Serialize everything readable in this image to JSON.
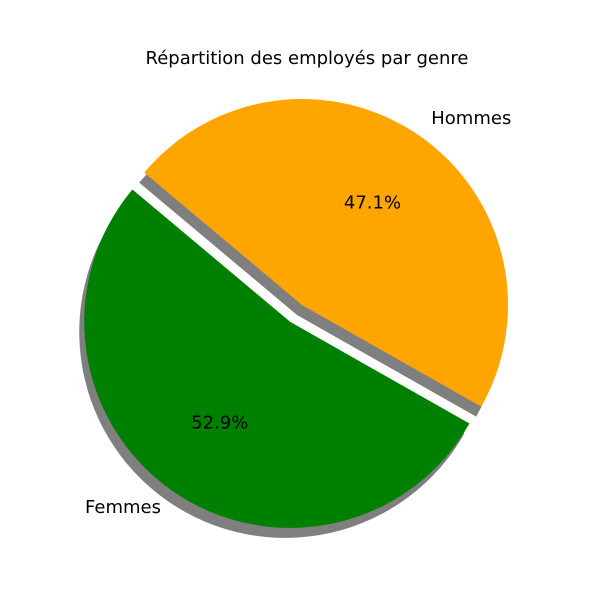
{
  "chart_data": {
    "type": "pie",
    "title": "Répartition des employés par genre",
    "slices": [
      {
        "label": "Femmes",
        "percent_label": "52.9%",
        "value": 52.9,
        "color": "#008000",
        "explode": 0.1
      },
      {
        "label": "Hommes",
        "percent_label": "47.1%",
        "value": 47.1,
        "color": "#FFA500",
        "explode": 0
      }
    ],
    "start_angle_deg": 140,
    "direction": "counterclockwise",
    "shadow": true
  }
}
